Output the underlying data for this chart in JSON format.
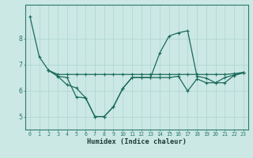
{
  "title": "",
  "xlabel": "Humidex (Indice chaleur)",
  "bg_color": "#cce8e4",
  "line_color": "#1a6b5e",
  "grid_color": "#b0d8d2",
  "xlim": [
    -0.5,
    23.5
  ],
  "ylim": [
    4.5,
    9.3
  ],
  "xticks": [
    0,
    1,
    2,
    3,
    4,
    5,
    6,
    7,
    8,
    9,
    10,
    11,
    12,
    13,
    14,
    15,
    16,
    17,
    18,
    19,
    20,
    21,
    22,
    23
  ],
  "yticks": [
    5,
    6,
    7,
    8
  ],
  "series1_x": [
    0,
    1,
    2,
    3,
    4,
    5,
    6,
    7,
    8,
    9,
    10,
    11,
    12,
    13,
    14,
    15,
    16,
    17,
    18,
    19,
    20,
    21,
    22,
    23
  ],
  "series1_y": [
    8.85,
    7.3,
    6.78,
    6.55,
    6.5,
    5.75,
    5.72,
    5.0,
    5.0,
    5.38,
    6.08,
    6.5,
    6.5,
    6.5,
    7.45,
    8.1,
    8.22,
    8.3,
    6.55,
    6.48,
    6.3,
    6.3,
    6.58,
    6.68
  ],
  "series2_x": [
    2,
    3,
    4,
    5,
    6,
    7,
    8,
    9,
    10,
    11,
    12,
    13,
    14,
    15,
    16,
    17,
    18,
    19,
    20,
    21,
    22,
    23
  ],
  "series2_y": [
    6.78,
    6.62,
    6.62,
    6.62,
    6.62,
    6.62,
    6.62,
    6.62,
    6.62,
    6.62,
    6.62,
    6.62,
    6.62,
    6.62,
    6.62,
    6.62,
    6.62,
    6.62,
    6.62,
    6.62,
    6.65,
    6.7
  ],
  "series3_x": [
    2,
    3,
    4,
    5,
    6,
    7,
    8,
    9,
    10,
    11,
    12,
    13,
    14,
    15,
    16,
    17,
    18,
    19,
    20,
    21,
    22,
    23
  ],
  "series3_y": [
    6.78,
    6.55,
    6.22,
    6.1,
    5.72,
    5.0,
    5.0,
    5.38,
    6.08,
    6.5,
    6.5,
    6.5,
    6.5,
    6.5,
    6.55,
    5.98,
    6.45,
    6.3,
    6.3,
    6.5,
    6.6,
    6.68
  ]
}
